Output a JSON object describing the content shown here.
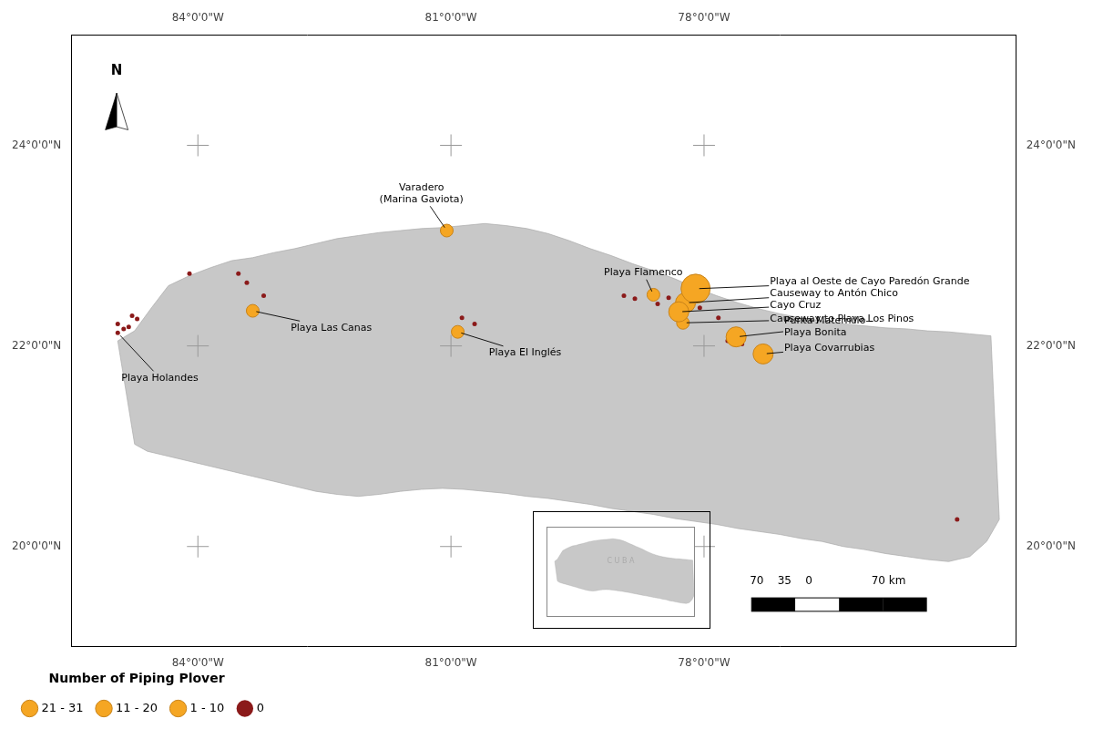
{
  "chart_data": {
    "type": "scatter",
    "xlim": [
      -85.5,
      -74.3
    ],
    "ylim": [
      19.0,
      25.1
    ],
    "xticks": [
      {
        "value": -84,
        "label": "84°0'0\"W"
      },
      {
        "value": -81,
        "label": "81°0'0\"W"
      },
      {
        "value": -78,
        "label": "78°0'0\"W"
      }
    ],
    "yticks": [
      {
        "value": 20,
        "label": "20°0'0\"N"
      },
      {
        "value": 22,
        "label": "22°0'0\"N"
      },
      {
        "value": 24,
        "label": "24°0'0\"N"
      }
    ],
    "grid": false,
    "legend": "lower left",
    "legend_title": "Number of Piping Plover",
    "size_classes": [
      {
        "label": "0",
        "max": 0,
        "color": "#8b1a1a"
      },
      {
        "label": "1 - 10",
        "max": 10,
        "color": "#f5a623",
        "edge_color": "#c8831a"
      },
      {
        "label": "11 - 20",
        "max": 20,
        "color": "#f5a623",
        "edge_color": "#c8831a"
      },
      {
        "label": "21 - 31",
        "max": 31,
        "color": "#f5a623",
        "edge_color": "#c8831a"
      }
    ],
    "sites": [
      {
        "name": "Playa Holandes",
        "x": -84.95,
        "y": 22.13,
        "count": 0,
        "label_x": -84.45,
        "label_y": 21.68,
        "align": "center"
      },
      {
        "name": "Playa Las Canas",
        "x": -83.35,
        "y": 22.35,
        "count": 5,
        "label_x": -82.9,
        "label_y": 22.18,
        "align": "left"
      },
      {
        "name": "Varadero\n(Marina Gaviota)",
        "x": -81.05,
        "y": 23.15,
        "count": 5,
        "label_x": -81.35,
        "label_y": 23.52,
        "align": "center"
      },
      {
        "name": "Playa El Inglés",
        "x": -80.92,
        "y": 22.14,
        "count": 8,
        "label_x": -80.55,
        "label_y": 21.93,
        "align": "left"
      },
      {
        "name": "Playa Flamenco",
        "x": -78.6,
        "y": 22.51,
        "count": 3,
        "label_x": -78.72,
        "label_y": 22.73,
        "align": "center"
      },
      {
        "name": "Playa al Oeste de Cayo Paredón Grande",
        "x": -78.1,
        "y": 22.57,
        "count": 25,
        "label_x": -77.22,
        "label_y": 22.64,
        "align": "left"
      },
      {
        "name": "Causeway to Antón Chico",
        "x": -78.22,
        "y": 22.43,
        "count": 15,
        "label_x": -77.22,
        "label_y": 22.52,
        "align": "left"
      },
      {
        "name": "Cayo Cruz",
        "x": -78.3,
        "y": 22.34,
        "count": 12,
        "label_x": -77.22,
        "label_y": 22.4,
        "align": "left"
      },
      {
        "name": "Causeway to Playa Los Pinos",
        "x": -78.25,
        "y": 22.23,
        "count": 10,
        "label_x": -77.22,
        "label_y": 22.27,
        "align": "left"
      },
      {
        "name": "Punta Maternillo-\nPlaya Bonita",
        "x": -77.62,
        "y": 22.09,
        "count": 15,
        "label_x": -77.05,
        "label_y": 22.19,
        "align": "left"
      },
      {
        "name": "Playa Covarrubias",
        "x": -77.3,
        "y": 21.92,
        "count": 20,
        "label_x": -77.05,
        "label_y": 21.98,
        "align": "left"
      }
    ],
    "zero_dots": [
      [
        -84.95,
        22.22
      ],
      [
        -84.88,
        22.17
      ],
      [
        -84.82,
        22.19
      ],
      [
        -84.78,
        22.3
      ],
      [
        -84.72,
        22.27
      ],
      [
        -84.1,
        22.72
      ],
      [
        -83.52,
        22.72
      ],
      [
        -83.42,
        22.63
      ],
      [
        -83.22,
        22.5
      ],
      [
        -80.87,
        22.28
      ],
      [
        -80.72,
        22.22
      ],
      [
        -78.95,
        22.5
      ],
      [
        -78.82,
        22.47
      ],
      [
        -78.55,
        22.42
      ],
      [
        -78.42,
        22.48
      ],
      [
        -78.05,
        22.38
      ],
      [
        -77.83,
        22.28
      ],
      [
        -77.72,
        22.05
      ],
      [
        -77.55,
        22.02
      ],
      [
        -75.0,
        20.27
      ]
    ],
    "graticule": {
      "color": "#999999",
      "points": [
        [
          -84,
          24
        ],
        [
          -81,
          24
        ],
        [
          -78,
          24
        ],
        [
          -84,
          22
        ],
        [
          -81,
          22
        ],
        [
          -78,
          22
        ],
        [
          -84,
          20
        ],
        [
          -81,
          20
        ],
        [
          -78,
          20
        ]
      ]
    },
    "land": {
      "color": "#c8c8c8",
      "edge_color": "#aaaaaa",
      "x": [
        -84.95,
        -84.75,
        -84.55,
        -84.35,
        -84.1,
        -83.85,
        -83.6,
        -83.35,
        -83.1,
        -82.85,
        -82.6,
        -82.35,
        -82.1,
        -81.85,
        -81.6,
        -81.35,
        -81.1,
        -80.85,
        -80.6,
        -80.35,
        -80.1,
        -79.85,
        -79.6,
        -79.35,
        -79.1,
        -78.85,
        -78.6,
        -78.35,
        -78.1,
        -77.85,
        -77.6,
        -77.35,
        -77.1,
        -76.85,
        -76.6,
        -76.35,
        -76.1,
        -75.85,
        -75.6,
        -75.35,
        -75.1,
        -74.85,
        -74.6,
        -74.5,
        -74.65,
        -74.85,
        -75.1,
        -75.35,
        -75.6,
        -75.85,
        -76.1,
        -76.35,
        -76.6,
        -76.85,
        -77.1,
        -77.35,
        -77.6,
        -77.85,
        -78.1,
        -78.35,
        -78.6,
        -78.85,
        -79.1,
        -79.35,
        -79.6,
        -79.85,
        -80.1,
        -80.35,
        -80.6,
        -80.85,
        -81.1,
        -81.35,
        -81.6,
        -81.85,
        -82.1,
        -82.35,
        -82.6,
        -82.85,
        -83.1,
        -83.35,
        -83.6,
        -83.85,
        -84.1,
        -84.35,
        -84.6,
        -84.75,
        -84.95
      ],
      "y": [
        22.05,
        22.15,
        22.38,
        22.6,
        22.7,
        22.78,
        22.85,
        22.88,
        22.93,
        22.97,
        23.02,
        23.07,
        23.1,
        23.13,
        23.15,
        23.17,
        23.18,
        23.2,
        23.22,
        23.2,
        23.17,
        23.12,
        23.05,
        22.97,
        22.9,
        22.82,
        22.75,
        22.67,
        22.58,
        22.5,
        22.43,
        22.37,
        22.32,
        22.28,
        22.25,
        22.22,
        22.2,
        22.18,
        22.17,
        22.15,
        22.14,
        22.12,
        22.1,
        20.27,
        20.05,
        19.9,
        19.85,
        19.87,
        19.9,
        19.93,
        19.97,
        20.0,
        20.05,
        20.08,
        20.12,
        20.15,
        20.18,
        20.22,
        20.25,
        20.28,
        20.32,
        20.35,
        20.38,
        20.42,
        20.45,
        20.48,
        20.5,
        20.53,
        20.55,
        20.57,
        20.58,
        20.57,
        20.55,
        20.52,
        20.5,
        20.52,
        20.55,
        20.6,
        20.65,
        20.7,
        20.75,
        20.8,
        20.85,
        20.9,
        20.95,
        21.02,
        22.05
      ]
    },
    "north_label": "N",
    "scale_label": "70    35    0                 70 km",
    "inset": {
      "xlim": [
        -85.5,
        -74.5
      ],
      "ylim": [
        19.2,
        23.8
      ],
      "label": "C U B A",
      "tick_labels": false
    }
  }
}
